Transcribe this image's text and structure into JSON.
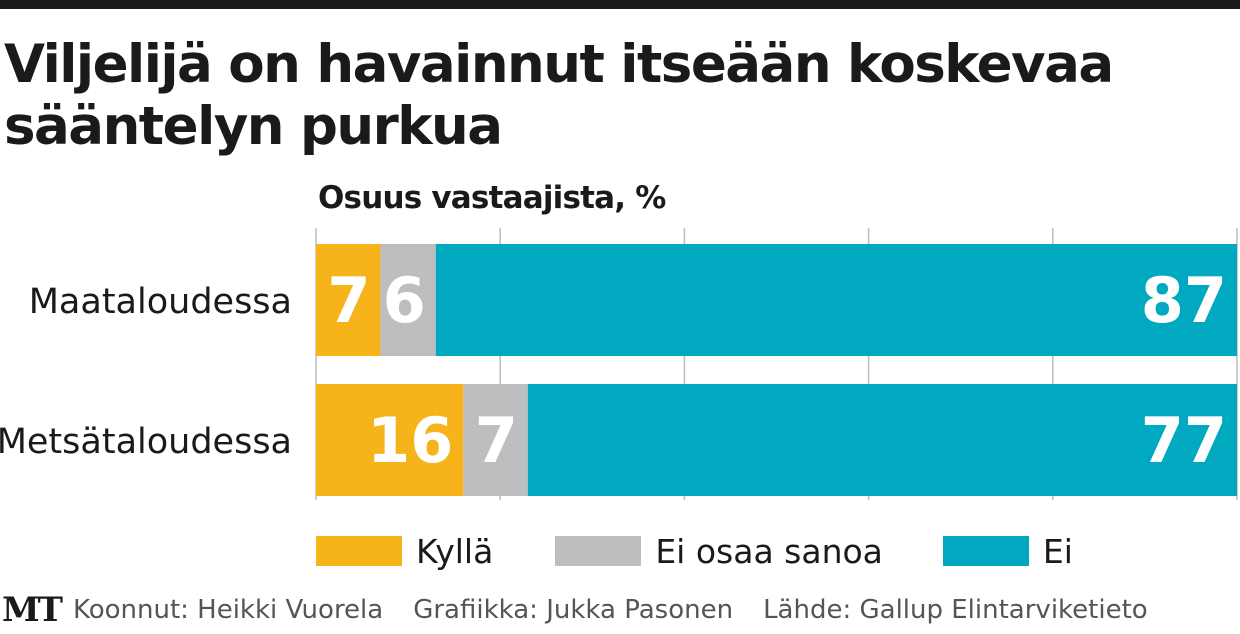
{
  "chart_data": {
    "type": "bar",
    "orientation": "horizontal",
    "stacked": true,
    "title": "Viljelijä on havainnut itseään koskevaa sääntelyn purkua",
    "subtitle": "Osuus vastaajista, %",
    "categories": [
      "Maataloudessa",
      "Metsätaloudessa"
    ],
    "series": [
      {
        "name": "Kyllä",
        "values": [
          7,
          16
        ],
        "color": "#f6b41a"
      },
      {
        "name": "Ei osaa sanoa",
        "values": [
          6,
          7
        ],
        "color": "#bcbec0"
      },
      {
        "name": "Ei",
        "values": [
          87,
          77
        ],
        "color": "#00a9c0"
      }
    ],
    "xlim": [
      0,
      100
    ],
    "grid": true,
    "legend_position": "bottom"
  },
  "footer": {
    "logo": "MT",
    "compiled_by": "Koonnut: Heikki Vuorela",
    "graphics": "Grafiikka: Jukka Pasonen",
    "source": "Lähde: Gallup Elintarviketieto"
  }
}
